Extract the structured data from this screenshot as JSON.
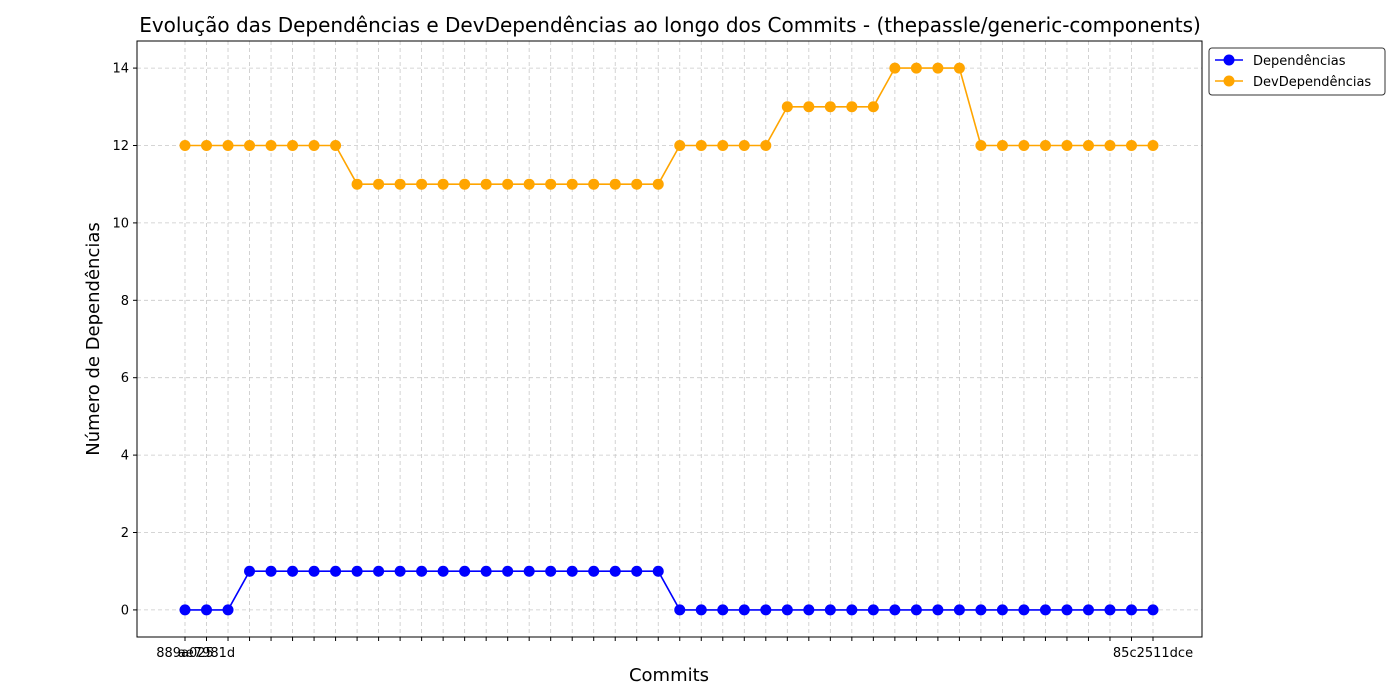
{
  "chart_data": {
    "type": "line",
    "title": "Evolução das Dependências e DevDependências ao longo dos Commits - (thepassle/generic-components)",
    "xlabel": "Commits",
    "ylabel": "Número de Dependências",
    "ylim": [
      -0.7,
      14.7
    ],
    "yticks": [
      0,
      2,
      4,
      6,
      8,
      10,
      12,
      14
    ],
    "grid": true,
    "legend_position": "top-right-outside",
    "x_count": 46,
    "x_tick_labels": [
      "889a025",
      "ae7981d",
      "",
      "",
      "",
      "",
      "",
      "",
      "",
      "",
      "",
      "",
      "",
      "",
      "",
      "",
      "",
      "",
      "",
      "",
      "",
      "",
      "",
      "",
      "",
      "",
      "",
      "",
      "",
      "",
      "",
      "",
      "",
      "",
      "",
      "",
      "",
      "",
      "",
      "",
      "",
      "",
      "",
      "",
      "",
      "85c2511dce"
    ],
    "series": [
      {
        "name": "Dependências",
        "color": "#0000ff",
        "values": [
          0,
          0,
          0,
          1,
          1,
          1,
          1,
          1,
          1,
          1,
          1,
          1,
          1,
          1,
          1,
          1,
          1,
          1,
          1,
          1,
          1,
          1,
          1,
          0,
          0,
          0,
          0,
          0,
          0,
          0,
          0,
          0,
          0,
          0,
          0,
          0,
          0,
          0,
          0,
          0,
          0,
          0,
          0,
          0,
          0,
          0
        ]
      },
      {
        "name": "DevDependências",
        "color": "#ffa500",
        "values": [
          12,
          12,
          12,
          12,
          12,
          12,
          12,
          12,
          11,
          11,
          11,
          11,
          11,
          11,
          11,
          11,
          11,
          11,
          11,
          11,
          11,
          11,
          11,
          12,
          12,
          12,
          12,
          12,
          13,
          13,
          13,
          13,
          13,
          14,
          14,
          14,
          14,
          12,
          12,
          12,
          12,
          12,
          12,
          12,
          12,
          12
        ]
      }
    ]
  }
}
